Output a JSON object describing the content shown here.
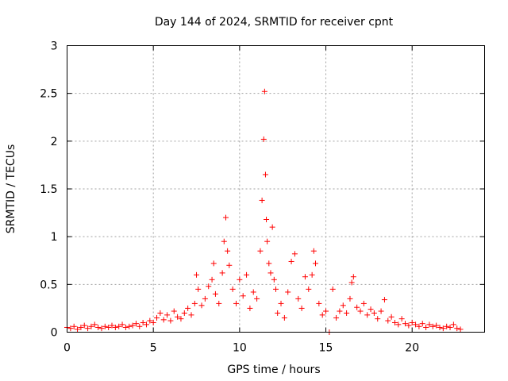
{
  "chart_data": {
    "type": "scatter",
    "title": "Day 144 of 2024, SRMTID for receiver cpnt",
    "xlabel": "GPS time / hours",
    "ylabel": "SRMTID / TECUs",
    "xlim": [
      0,
      24.2
    ],
    "ylim": [
      0,
      3
    ],
    "xticks": [
      0,
      5,
      10,
      15,
      20
    ],
    "yticks": [
      0,
      0.5,
      1,
      1.5,
      2,
      2.5,
      3
    ],
    "xtick_labels": [
      "0",
      "5",
      "10",
      "15",
      "20"
    ],
    "ytick_labels": [
      "0",
      "0.5",
      "1",
      "1.5",
      "2",
      "2.5",
      "3"
    ],
    "grid": true,
    "marker": "+",
    "series": [
      {
        "name": "SRMTID",
        "color": "#ff0000",
        "x": [
          0.0,
          0.2,
          0.4,
          0.6,
          0.8,
          1.0,
          1.2,
          1.4,
          1.6,
          1.8,
          2.0,
          2.2,
          2.4,
          2.6,
          2.8,
          3.0,
          3.2,
          3.4,
          3.6,
          3.8,
          4.0,
          4.2,
          4.4,
          4.6,
          4.8,
          5.0,
          5.2,
          5.4,
          5.6,
          5.8,
          6.0,
          6.2,
          6.4,
          6.6,
          6.8,
          7.0,
          7.2,
          7.4,
          7.5,
          7.6,
          7.8,
          8.0,
          8.2,
          8.4,
          8.5,
          8.6,
          8.8,
          9.0,
          9.1,
          9.2,
          9.3,
          9.4,
          9.6,
          9.8,
          10.0,
          10.2,
          10.4,
          10.6,
          10.8,
          11.0,
          11.2,
          11.3,
          11.4,
          11.45,
          11.5,
          11.55,
          11.6,
          11.7,
          11.8,
          11.9,
          12.0,
          12.1,
          12.2,
          12.4,
          12.6,
          12.8,
          13.0,
          13.2,
          13.4,
          13.6,
          13.8,
          14.0,
          14.2,
          14.3,
          14.4,
          14.6,
          14.8,
          15.0,
          15.2,
          15.4,
          15.6,
          15.8,
          16.0,
          16.2,
          16.4,
          16.5,
          16.6,
          16.8,
          17.0,
          17.2,
          17.4,
          17.6,
          17.8,
          18.0,
          18.2,
          18.4,
          18.6,
          18.8,
          19.0,
          19.2,
          19.4,
          19.6,
          19.8,
          20.0,
          20.2,
          20.4,
          20.6,
          20.8,
          21.0,
          21.2,
          21.4,
          21.6,
          21.8,
          22.0,
          22.2,
          22.4,
          22.6,
          22.8
        ],
        "y": [
          0.05,
          0.04,
          0.06,
          0.03,
          0.05,
          0.07,
          0.04,
          0.06,
          0.08,
          0.05,
          0.04,
          0.06,
          0.05,
          0.07,
          0.05,
          0.06,
          0.08,
          0.05,
          0.06,
          0.07,
          0.09,
          0.06,
          0.1,
          0.08,
          0.12,
          0.1,
          0.15,
          0.2,
          0.13,
          0.18,
          0.12,
          0.22,
          0.16,
          0.14,
          0.2,
          0.25,
          0.18,
          0.3,
          0.6,
          0.45,
          0.28,
          0.35,
          0.48,
          0.55,
          0.72,
          0.4,
          0.3,
          0.62,
          0.95,
          1.2,
          0.85,
          0.7,
          0.45,
          0.3,
          0.55,
          0.38,
          0.6,
          0.25,
          0.42,
          0.35,
          0.85,
          1.38,
          2.02,
          2.52,
          1.65,
          1.18,
          0.95,
          0.72,
          0.62,
          1.1,
          0.55,
          0.45,
          0.2,
          0.3,
          0.15,
          0.42,
          0.74,
          0.82,
          0.35,
          0.25,
          0.58,
          0.45,
          0.6,
          0.85,
          0.72,
          0.3,
          0.18,
          0.22,
          0.0,
          0.45,
          0.15,
          0.22,
          0.28,
          0.2,
          0.35,
          0.52,
          0.58,
          0.26,
          0.22,
          0.3,
          0.18,
          0.24,
          0.2,
          0.14,
          0.22,
          0.34,
          0.12,
          0.16,
          0.1,
          0.08,
          0.14,
          0.09,
          0.07,
          0.1,
          0.08,
          0.06,
          0.09,
          0.05,
          0.08,
          0.06,
          0.07,
          0.05,
          0.04,
          0.06,
          0.05,
          0.08,
          0.04,
          0.03
        ]
      }
    ]
  }
}
